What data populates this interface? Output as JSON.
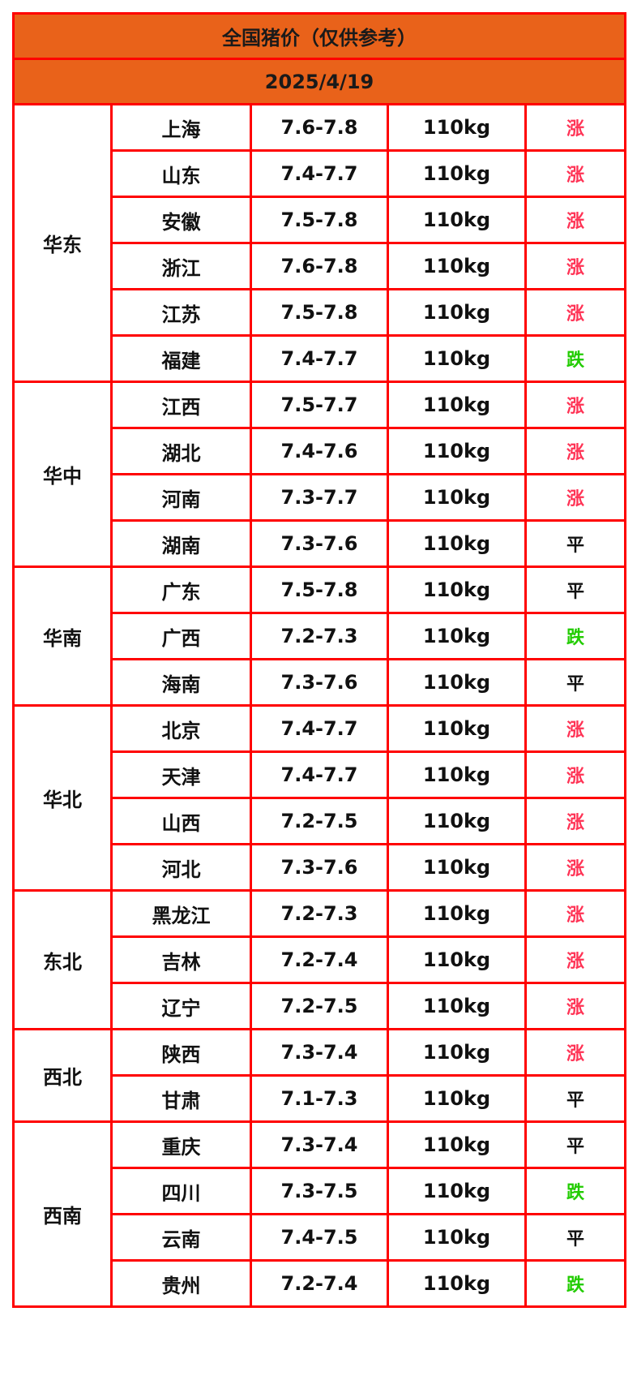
{
  "title": "全国猪价（仅供参考）",
  "date": "2025/4/19",
  "colors": {
    "header_bg": "#e9621a",
    "border": "#ff0000",
    "up": "#ff3355",
    "down": "#22cc00",
    "flat": "#111111"
  },
  "regions": [
    {
      "name": "华东",
      "rows": [
        {
          "province": "上海",
          "price": "7.6-7.8",
          "weight": "110kg",
          "trend": "涨"
        },
        {
          "province": "山东",
          "price": "7.4-7.7",
          "weight": "110kg",
          "trend": "涨"
        },
        {
          "province": "安徽",
          "price": "7.5-7.8",
          "weight": "110kg",
          "trend": "涨"
        },
        {
          "province": "浙江",
          "price": "7.6-7.8",
          "weight": "110kg",
          "trend": "涨"
        },
        {
          "province": "江苏",
          "price": "7.5-7.8",
          "weight": "110kg",
          "trend": "涨"
        },
        {
          "province": "福建",
          "price": "7.4-7.7",
          "weight": "110kg",
          "trend": "跌"
        }
      ]
    },
    {
      "name": "华中",
      "rows": [
        {
          "province": "江西",
          "price": "7.5-7.7",
          "weight": "110kg",
          "trend": "涨"
        },
        {
          "province": "湖北",
          "price": "7.4-7.6",
          "weight": "110kg",
          "trend": "涨"
        },
        {
          "province": "河南",
          "price": "7.3-7.7",
          "weight": "110kg",
          "trend": "涨"
        },
        {
          "province": "湖南",
          "price": "7.3-7.6",
          "weight": "110kg",
          "trend": "平"
        }
      ]
    },
    {
      "name": "华南",
      "rows": [
        {
          "province": "广东",
          "price": "7.5-7.8",
          "weight": "110kg",
          "trend": "平"
        },
        {
          "province": "广西",
          "price": "7.2-7.3",
          "weight": "110kg",
          "trend": "跌"
        },
        {
          "province": "海南",
          "price": "7.3-7.6",
          "weight": "110kg",
          "trend": "平"
        }
      ]
    },
    {
      "name": "华北",
      "rows": [
        {
          "province": "北京",
          "price": "7.4-7.7",
          "weight": "110kg",
          "trend": "涨"
        },
        {
          "province": "天津",
          "price": "7.4-7.7",
          "weight": "110kg",
          "trend": "涨"
        },
        {
          "province": "山西",
          "price": "7.2-7.5",
          "weight": "110kg",
          "trend": "涨"
        },
        {
          "province": "河北",
          "price": "7.3-7.6",
          "weight": "110kg",
          "trend": "涨"
        }
      ]
    },
    {
      "name": "东北",
      "rows": [
        {
          "province": "黑龙江",
          "price": "7.2-7.3",
          "weight": "110kg",
          "trend": "涨"
        },
        {
          "province": "吉林",
          "price": "7.2-7.4",
          "weight": "110kg",
          "trend": "涨"
        },
        {
          "province": "辽宁",
          "price": "7.2-7.5",
          "weight": "110kg",
          "trend": "涨"
        }
      ]
    },
    {
      "name": "西北",
      "rows": [
        {
          "province": "陕西",
          "price": "7.3-7.4",
          "weight": "110kg",
          "trend": "涨"
        },
        {
          "province": "甘肃",
          "price": "7.1-7.3",
          "weight": "110kg",
          "trend": "平"
        }
      ]
    },
    {
      "name": "西南",
      "rows": [
        {
          "province": "重庆",
          "price": "7.3-7.4",
          "weight": "110kg",
          "trend": "平"
        },
        {
          "province": "四川",
          "price": "7.3-7.5",
          "weight": "110kg",
          "trend": "跌"
        },
        {
          "province": "云南",
          "price": "7.4-7.5",
          "weight": "110kg",
          "trend": "平"
        },
        {
          "province": "贵州",
          "price": "7.2-7.4",
          "weight": "110kg",
          "trend": "跌"
        }
      ]
    }
  ]
}
